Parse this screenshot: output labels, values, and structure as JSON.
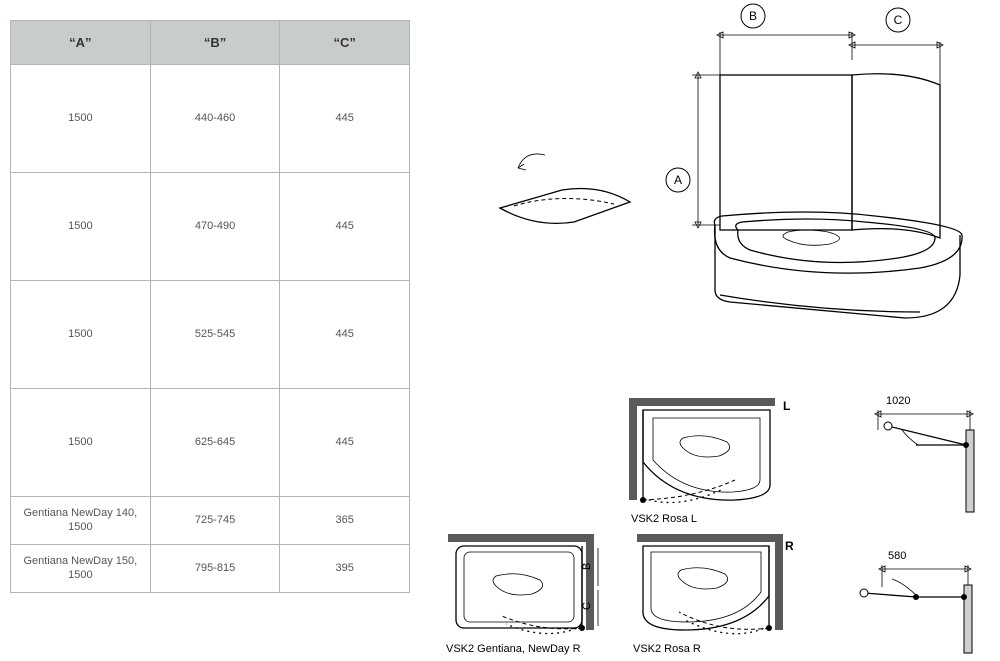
{
  "table": {
    "type": "table",
    "header_bg": "#c9cccc",
    "border_color": "#b3b5b5",
    "text_color": "#555555",
    "columns": [
      "“A”",
      "“B”",
      "“C”"
    ],
    "rows": [
      {
        "height": "big",
        "cells": [
          "1500",
          "440-460",
          "445"
        ]
      },
      {
        "height": "big",
        "cells": [
          "1500",
          "470-490",
          "445"
        ]
      },
      {
        "height": "big",
        "cells": [
          "1500",
          "525-545",
          "445"
        ]
      },
      {
        "height": "big",
        "cells": [
          "1500",
          "625-645",
          "445"
        ]
      },
      {
        "height": "small",
        "cells": [
          "Gentiana NewDay 140, 1500",
          "725-745",
          "365"
        ]
      },
      {
        "height": "small",
        "cells": [
          "Gentiana NewDay 150, 1500",
          "795-815",
          "395"
        ]
      }
    ]
  },
  "diagrams": {
    "stroke_color": "#000000",
    "frame_color": "#5a5a5a",
    "main": {
      "dim_labels": {
        "A": "A",
        "B": "B",
        "C": "C"
      }
    },
    "top_left_L": {
      "label": "VSK2 Rosa L",
      "side_letter": "L"
    },
    "top_right_1020": {
      "value": "1020"
    },
    "bottom_left": {
      "label": "VSK2 Gentiana, NewDay R",
      "letters": {
        "B": "B",
        "C": "C"
      }
    },
    "bottom_mid_R": {
      "label": "VSK2 Rosa R",
      "side_letter": "R"
    },
    "bottom_right_580": {
      "value": "580"
    }
  }
}
